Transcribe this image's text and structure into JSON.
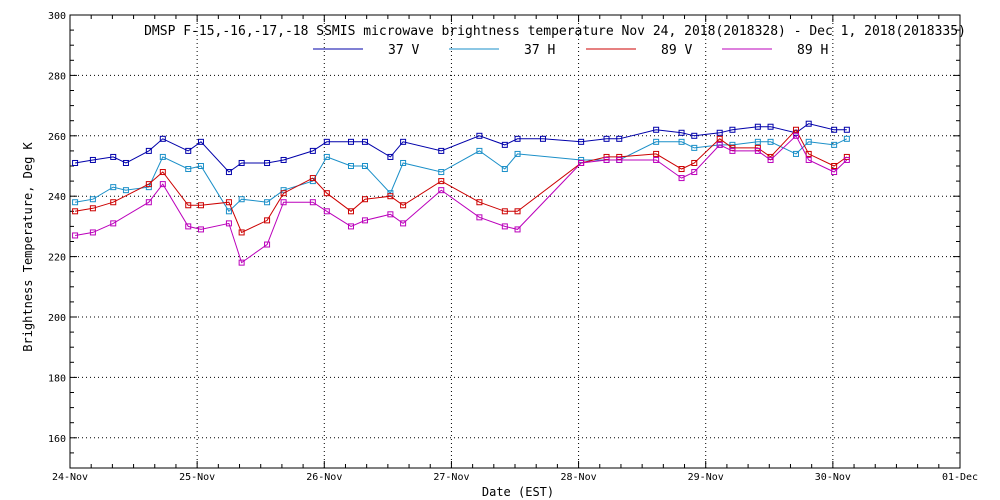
{
  "chart_data": {
    "type": "line",
    "title": "DMSP F-15,-16,-17,-18 SSMIS microwave brightness temperature Nov 24, 2018(2018328) - Dec  1, 2018(2018335)",
    "xlabel": "Date (EST)",
    "ylabel": "Brightness Temperature, Deg K",
    "ylim": [
      150,
      300
    ],
    "xlim": [
      0,
      7
    ],
    "grid": true,
    "legend_position": "top-center",
    "yticks": [
      160,
      180,
      200,
      220,
      240,
      260,
      280,
      300
    ],
    "x_tick_labels": [
      "24-Nov",
      "25-Nov",
      "26-Nov",
      "27-Nov",
      "28-Nov",
      "29-Nov",
      "30-Nov",
      "01-Dec"
    ],
    "series": [
      {
        "name": "37 V",
        "color": "#0000aa",
        "points": [
          [
            0.04,
            251
          ],
          [
            0.18,
            252
          ],
          [
            0.34,
            253
          ],
          [
            0.44,
            251
          ],
          [
            0.62,
            255
          ],
          [
            0.73,
            259
          ],
          [
            0.93,
            255
          ],
          [
            1.03,
            258
          ],
          [
            1.25,
            248
          ],
          [
            1.35,
            251
          ],
          [
            1.55,
            251
          ],
          [
            1.68,
            252
          ],
          [
            1.91,
            255
          ],
          [
            2.02,
            258
          ],
          [
            2.21,
            258
          ],
          [
            2.32,
            258
          ],
          [
            2.52,
            253
          ],
          [
            2.62,
            258
          ],
          [
            2.92,
            255
          ],
          [
            3.22,
            260
          ],
          [
            3.42,
            257
          ],
          [
            3.52,
            259
          ],
          [
            3.72,
            259
          ],
          [
            4.02,
            258
          ],
          [
            4.22,
            259
          ],
          [
            4.32,
            259
          ],
          [
            4.61,
            262
          ],
          [
            4.81,
            261
          ],
          [
            4.91,
            260
          ],
          [
            5.11,
            261
          ],
          [
            5.21,
            262
          ],
          [
            5.41,
            263
          ],
          [
            5.51,
            263
          ],
          [
            5.71,
            261
          ],
          [
            5.81,
            264
          ],
          [
            6.01,
            262
          ],
          [
            6.11,
            262
          ]
        ]
      },
      {
        "name": "37 H",
        "color": "#1a8fc8",
        "points": [
          [
            0.04,
            238
          ],
          [
            0.18,
            239
          ],
          [
            0.34,
            243
          ],
          [
            0.44,
            242
          ],
          [
            0.62,
            243
          ],
          [
            0.73,
            253
          ],
          [
            0.93,
            249
          ],
          [
            1.03,
            250
          ],
          [
            1.25,
            235
          ],
          [
            1.35,
            239
          ],
          [
            1.55,
            238
          ],
          [
            1.68,
            242
          ],
          [
            1.91,
            245
          ],
          [
            2.02,
            253
          ],
          [
            2.21,
            250
          ],
          [
            2.32,
            250
          ],
          [
            2.52,
            241
          ],
          [
            2.62,
            251
          ],
          [
            2.92,
            248
          ],
          [
            3.22,
            255
          ],
          [
            3.42,
            249
          ],
          [
            3.52,
            254
          ],
          [
            4.02,
            252
          ],
          [
            4.22,
            252
          ],
          [
            4.32,
            252
          ],
          [
            4.61,
            258
          ],
          [
            4.81,
            258
          ],
          [
            4.91,
            256
          ],
          [
            5.11,
            257
          ],
          [
            5.21,
            257
          ],
          [
            5.41,
            258
          ],
          [
            5.51,
            258
          ],
          [
            5.71,
            254
          ],
          [
            5.81,
            258
          ],
          [
            6.01,
            257
          ],
          [
            6.11,
            259
          ]
        ]
      },
      {
        "name": "89 V",
        "color": "#cc0000",
        "points": [
          [
            0.04,
            235
          ],
          [
            0.18,
            236
          ],
          [
            0.34,
            238
          ],
          [
            0.62,
            244
          ],
          [
            0.73,
            248
          ],
          [
            0.93,
            237
          ],
          [
            1.03,
            237
          ],
          [
            1.25,
            238
          ],
          [
            1.35,
            228
          ],
          [
            1.55,
            232
          ],
          [
            1.68,
            241
          ],
          [
            1.91,
            246
          ],
          [
            2.02,
            241
          ],
          [
            2.21,
            235
          ],
          [
            2.32,
            239
          ],
          [
            2.52,
            240
          ],
          [
            2.62,
            237
          ],
          [
            2.92,
            245
          ],
          [
            3.22,
            238
          ],
          [
            3.42,
            235
          ],
          [
            3.52,
            235
          ],
          [
            4.02,
            251
          ],
          [
            4.22,
            253
          ],
          [
            4.32,
            253
          ],
          [
            4.61,
            254
          ],
          [
            4.81,
            249
          ],
          [
            4.91,
            251
          ],
          [
            5.11,
            259
          ],
          [
            5.21,
            256
          ],
          [
            5.41,
            256
          ],
          [
            5.51,
            253
          ],
          [
            5.71,
            262
          ],
          [
            5.81,
            254
          ],
          [
            6.01,
            250
          ],
          [
            6.11,
            253
          ]
        ]
      },
      {
        "name": "89 H",
        "color": "#bb00bb",
        "points": [
          [
            0.04,
            227
          ],
          [
            0.18,
            228
          ],
          [
            0.34,
            231
          ],
          [
            0.62,
            238
          ],
          [
            0.73,
            244
          ],
          [
            0.93,
            230
          ],
          [
            1.03,
            229
          ],
          [
            1.25,
            231
          ],
          [
            1.35,
            218
          ],
          [
            1.55,
            224
          ],
          [
            1.68,
            238
          ],
          [
            1.91,
            238
          ],
          [
            2.02,
            235
          ],
          [
            2.21,
            230
          ],
          [
            2.32,
            232
          ],
          [
            2.52,
            234
          ],
          [
            2.62,
            231
          ],
          [
            2.92,
            242
          ],
          [
            3.22,
            233
          ],
          [
            3.42,
            230
          ],
          [
            3.52,
            229
          ],
          [
            4.02,
            251
          ],
          [
            4.22,
            252
          ],
          [
            4.32,
            252
          ],
          [
            4.61,
            252
          ],
          [
            4.81,
            246
          ],
          [
            4.91,
            248
          ],
          [
            5.11,
            257
          ],
          [
            5.21,
            255
          ],
          [
            5.41,
            255
          ],
          [
            5.51,
            252
          ],
          [
            5.71,
            260
          ],
          [
            5.81,
            252
          ],
          [
            6.01,
            248
          ],
          [
            6.11,
            252
          ]
        ]
      }
    ]
  }
}
